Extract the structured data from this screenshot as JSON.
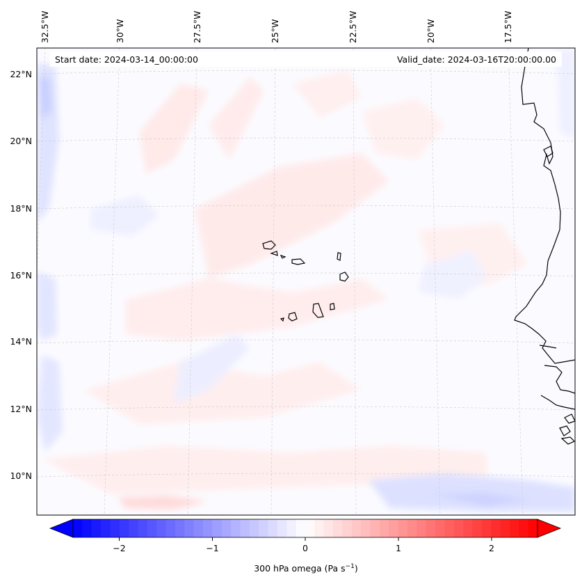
{
  "header": {
    "start_date": "Start date: 2024-03-14_00:00:00",
    "valid_date": "Valid_date: 2024-03-16T20:00:00.00"
  },
  "map": {
    "lon_labels": [
      "32.5°W",
      "30°W",
      "27.5°W",
      "25°W",
      "22.5°W",
      "20°W",
      "17.5°W"
    ],
    "lat_labels": [
      "22°N",
      "20°N",
      "18°N",
      "16°N",
      "14°N",
      "12°N",
      "10°N"
    ],
    "field_colors": {
      "positive": "#ffe6e6",
      "negative": "#e6e6ff",
      "coast": "#000000"
    }
  },
  "colorbar": {
    "label": "300 hPa omega (Pa s",
    "label_exp": "−1",
    "label_close": ")",
    "ticks": [
      "−2",
      "−1",
      "0",
      "1",
      "2"
    ],
    "cmap": "bwr",
    "range": [
      -2.6,
      2.6
    ]
  }
}
